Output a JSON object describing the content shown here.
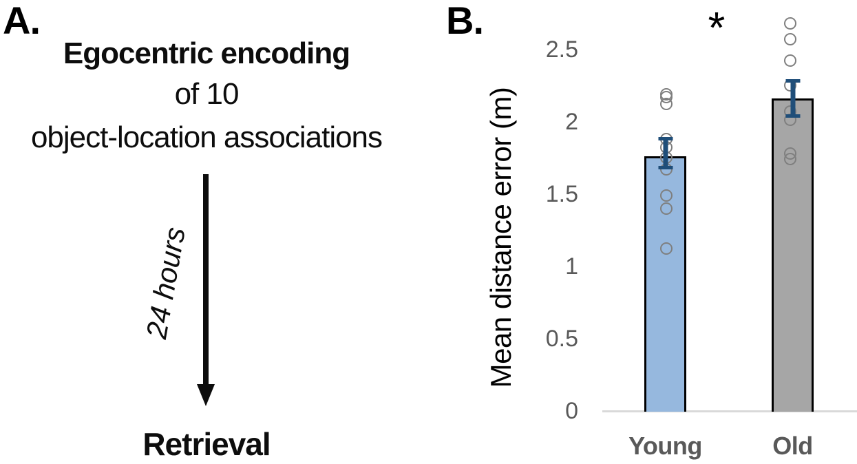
{
  "panel_a": {
    "label": "A.",
    "title": "Egocentric encoding",
    "subtitle": "of 10",
    "subtitle2": "object-location associations",
    "arrow_label": "24 hours",
    "footer": "Retrieval"
  },
  "panel_b": {
    "label": "B.",
    "significance_marker": "*"
  },
  "chart_data": {
    "type": "bar",
    "categories": [
      "Young",
      "Old"
    ],
    "series": [
      {
        "name": "Mean distance error (m)",
        "values": [
          1.76,
          2.16
        ]
      }
    ],
    "error_bars": [
      {
        "low": 1.68,
        "high": 1.88
      },
      {
        "low": 2.04,
        "high": 2.28
      }
    ],
    "points": [
      [
        2.19,
        2.17,
        2.12,
        1.88,
        1.82,
        1.75,
        1.67,
        1.49,
        1.4,
        1.12
      ],
      [
        2.68,
        2.57,
        2.42,
        2.25,
        2.07,
        2.01,
        1.78,
        1.74
      ]
    ],
    "title": "",
    "xlabel": "",
    "ylabel": "Mean distance error (m)",
    "ylim": [
      0,
      2.75
    ],
    "yticks": [
      0,
      0.5,
      1,
      1.5,
      2,
      2.5
    ],
    "ytick_labels": [
      "0",
      "0.5",
      "1",
      "1.5",
      "2",
      "2.5"
    ],
    "grid": false,
    "legend": false,
    "significance": "*",
    "colors": {
      "bar_fills": [
        "#96B8DE",
        "#A6A6A6"
      ],
      "bar_border": "#000000",
      "point_stroke": "#7F7F7F",
      "error_bar": "#1F4E79",
      "axis_line": "#D9D9D9",
      "tick_label": "#595959",
      "category_label": "#595959",
      "ylabel_color": "#000000"
    }
  }
}
